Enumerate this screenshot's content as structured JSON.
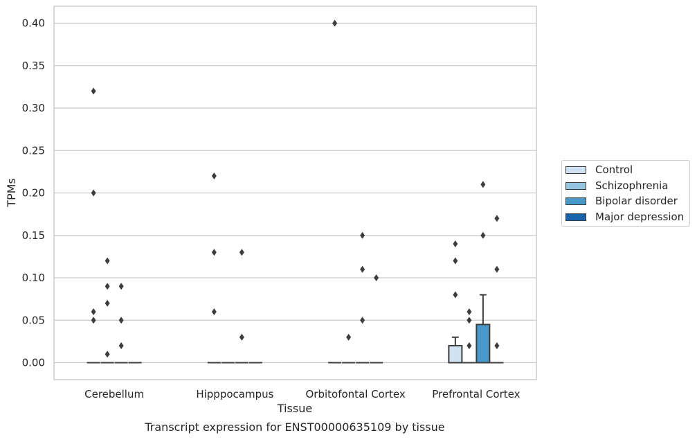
{
  "chart_data": {
    "type": "box",
    "title": "Transcript expression for ENST00000635109 by tissue",
    "xlabel": "Tissue",
    "ylabel": "TPMs",
    "ylim": [
      -0.02,
      0.42
    ],
    "yticks": [
      "0.00",
      "0.05",
      "0.10",
      "0.15",
      "0.20",
      "0.25",
      "0.30",
      "0.35",
      "0.40"
    ],
    "grid": true,
    "legend_position": "right",
    "categories": [
      "Cerebellum",
      "Hipppocampus",
      "Orbitofontal Cortex",
      "Prefrontal Cortex"
    ],
    "series": [
      {
        "name": "Control",
        "color": "#d0e1f2",
        "boxes": [
          {
            "q1": 0,
            "median": 0,
            "q3": 0,
            "whisker_low": 0,
            "whisker_high": 0,
            "outliers": [
              0.06,
              0.05,
              0.2,
              0.32
            ]
          },
          {
            "q1": 0,
            "median": 0,
            "q3": 0,
            "whisker_low": 0,
            "whisker_high": 0,
            "outliers": [
              0.06,
              0.13,
              0.22
            ]
          },
          {
            "q1": 0,
            "median": 0,
            "q3": 0,
            "whisker_low": 0,
            "whisker_high": 0,
            "outliers": [
              0.4
            ]
          },
          {
            "q1": 0,
            "median": 0,
            "q3": 0.02,
            "whisker_low": 0,
            "whisker_high": 0.03,
            "outliers": [
              0.08,
              0.12,
              0.14
            ]
          }
        ]
      },
      {
        "name": "Schizophrenia",
        "color": "#94c4df",
        "boxes": [
          {
            "q1": 0,
            "median": 0,
            "q3": 0,
            "whisker_low": 0,
            "whisker_high": 0,
            "outliers": [
              0.01,
              0.07,
              0.09,
              0.12
            ]
          },
          {
            "q1": 0,
            "median": 0,
            "q3": 0,
            "whisker_low": 0,
            "whisker_high": 0,
            "outliers": []
          },
          {
            "q1": 0,
            "median": 0,
            "q3": 0,
            "whisker_low": 0,
            "whisker_high": 0,
            "outliers": [
              0.03
            ]
          },
          {
            "q1": 0,
            "median": 0,
            "q3": 0,
            "whisker_low": 0,
            "whisker_high": 0,
            "outliers": [
              0.02,
              0.05,
              0.06
            ]
          }
        ]
      },
      {
        "name": "Bipolar disorder",
        "color": "#4a98c9",
        "boxes": [
          {
            "q1": 0,
            "median": 0,
            "q3": 0,
            "whisker_low": 0,
            "whisker_high": 0,
            "outliers": [
              0.02,
              0.05,
              0.09
            ]
          },
          {
            "q1": 0,
            "median": 0,
            "q3": 0,
            "whisker_low": 0,
            "whisker_high": 0,
            "outliers": [
              0.03,
              0.13
            ]
          },
          {
            "q1": 0,
            "median": 0,
            "q3": 0,
            "whisker_low": 0,
            "whisker_high": 0,
            "outliers": [
              0.05,
              0.11,
              0.15
            ]
          },
          {
            "q1": 0,
            "median": 0,
            "q3": 0.045,
            "whisker_low": 0,
            "whisker_high": 0.08,
            "outliers": [
              0.15,
              0.21
            ]
          }
        ]
      },
      {
        "name": "Major depression",
        "color": "#1764ab",
        "boxes": [
          {
            "q1": 0,
            "median": 0,
            "q3": 0,
            "whisker_low": 0,
            "whisker_high": 0,
            "outliers": []
          },
          {
            "q1": 0,
            "median": 0,
            "q3": 0,
            "whisker_low": 0,
            "whisker_high": 0,
            "outliers": []
          },
          {
            "q1": 0,
            "median": 0,
            "q3": 0,
            "whisker_low": 0,
            "whisker_high": 0,
            "outliers": [
              0.1
            ]
          },
          {
            "q1": 0,
            "median": 0,
            "q3": 0,
            "whisker_low": 0,
            "whisker_high": 0,
            "outliers": [
              0.02,
              0.11,
              0.17
            ]
          }
        ]
      }
    ]
  }
}
